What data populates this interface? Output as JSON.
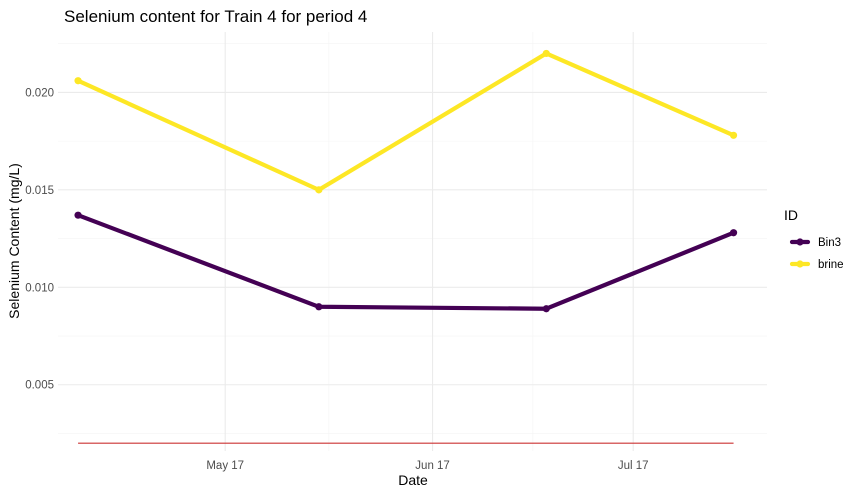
{
  "chart_data": {
    "type": "line",
    "title": "Selenium content for Train 4 for period 4",
    "xlabel": "Date",
    "ylabel": "Selenium Content (mg/L)",
    "x": [
      "2023-04-25",
      "2023-05-31",
      "2023-07-04",
      "2023-08-01"
    ],
    "x_ticks": [
      {
        "date": "2023-05-17",
        "label": "May 17"
      },
      {
        "date": "2023-06-17",
        "label": "Jun 17"
      },
      {
        "date": "2023-07-17",
        "label": "Jul 17"
      }
    ],
    "xlim": [
      "2023-04-22",
      "2023-08-06"
    ],
    "y_ticks": [
      0.005,
      0.01,
      0.015,
      0.02
    ],
    "y_tick_labels": [
      "0.005",
      "0.010",
      "0.015",
      "0.020"
    ],
    "ylim": [
      0.0016,
      0.0231
    ],
    "series": [
      {
        "name": "Bin3",
        "color": "#440154",
        "values": [
          0.0137,
          0.009,
          0.0089,
          0.0128
        ]
      },
      {
        "name": "brine",
        "color": "#FDE725",
        "values": [
          0.0206,
          0.015,
          0.022,
          0.0178
        ]
      }
    ],
    "reference_line": {
      "y": 0.002,
      "color": "#cc3333"
    },
    "legend": {
      "title": "ID",
      "position": "right"
    },
    "grid": true
  }
}
